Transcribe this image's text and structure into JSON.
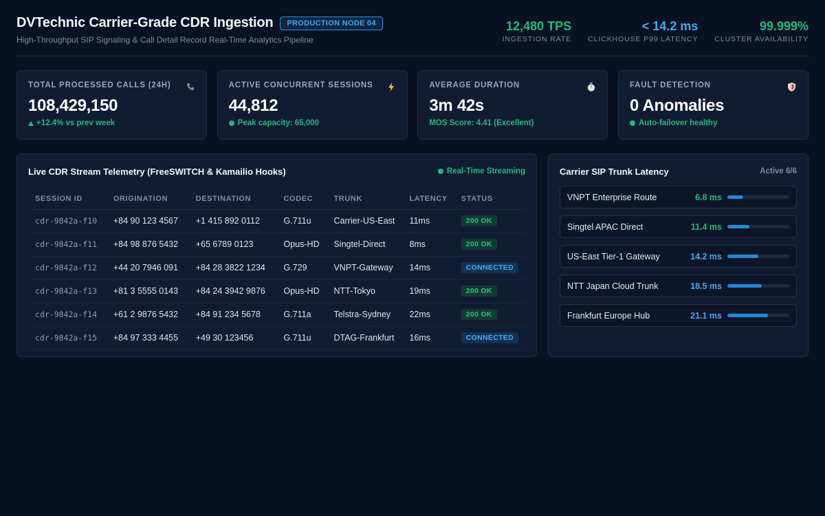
{
  "header": {
    "title": "DVTechnic Carrier-Grade CDR Ingestion",
    "badge": "PRODUCTION NODE 04",
    "subtitle": "High-Throughput SIP Signaling & Call Detail Record Real-Time Analytics Pipeline",
    "metrics": [
      {
        "value": "12,480 TPS",
        "label": "INGESTION RATE",
        "color": "#22b97a"
      },
      {
        "value": "< 14.2 ms",
        "label": "CLICKHOUSE P99 LATENCY",
        "color": "#45a6f2"
      },
      {
        "value": "99.999%",
        "label": "CLUSTER AVAILABILITY",
        "color": "#22b97a"
      }
    ]
  },
  "kpis": [
    {
      "label": "TOTAL PROCESSED CALLS (24H)",
      "icon": "phone-icon",
      "value": "108,429,150",
      "sub": "+12.4% vs prev week"
    },
    {
      "label": "ACTIVE CONCURRENT SESSIONS",
      "icon": "lightning-icon",
      "value": "44,812",
      "sub": "Peak capacity: 65,000"
    },
    {
      "label": "AVERAGE DURATION",
      "icon": "stopwatch-icon",
      "value": "3m 42s",
      "sub": "MOS Score: 4.41 (Excellent)"
    },
    {
      "label": "FAULT DETECTION",
      "icon": "shield-icon",
      "value": "0 Anomalies",
      "sub": "Auto-failover healthy"
    }
  ],
  "telemetry": {
    "title": "Live CDR Stream Telemetry (FreeSWITCH & Kamailio Hooks)",
    "status": "Real-Time Streaming",
    "columns": [
      "SESSION ID",
      "ORIGINATION",
      "DESTINATION",
      "CODEC",
      "TRUNK",
      "LATENCY",
      "STATUS"
    ],
    "rows": [
      [
        "cdr-9842a-f10",
        "+84 90 123 4567",
        "+1 415 892 0112",
        "G.711u",
        "Carrier-US-East",
        "11ms",
        "200 OK"
      ],
      [
        "cdr-9842a-f11",
        "+84 98 876 5432",
        "+65 6789 0123",
        "Opus-HD",
        "Singtel-Direct",
        "8ms",
        "200 OK"
      ],
      [
        "cdr-9842a-f12",
        "+44 20 7946 091",
        "+84 28 3822 1234",
        "G.729",
        "VNPT-Gateway",
        "14ms",
        "CONNECTED"
      ],
      [
        "cdr-9842a-f13",
        "+81 3 5555 0143",
        "+84 24 3942 9876",
        "Opus-HD",
        "NTT-Tokyo",
        "19ms",
        "200 OK"
      ],
      [
        "cdr-9842a-f14",
        "+61 2 9876 5432",
        "+84 91 234 5678",
        "G.711a",
        "Telstra-Sydney",
        "22ms",
        "200 OK"
      ],
      [
        "cdr-9842a-f15",
        "+84 97 333 4455",
        "+49 30 123456",
        "G.711u",
        "DTAG-Frankfurt",
        "16ms",
        "CONNECTED"
      ]
    ]
  },
  "trunks": {
    "title": "Carrier SIP Trunk Latency",
    "active": "Active 6/6",
    "items": [
      {
        "name": "VNPT Enterprise Route",
        "latency": "6.8 ms",
        "level": 0.25,
        "color": "#22b97a"
      },
      {
        "name": "Singtel APAC Direct",
        "latency": "11.4 ms",
        "level": 0.35,
        "color": "#22b97a"
      },
      {
        "name": "US-East Tier-1 Gateway",
        "latency": "14.2 ms",
        "level": 0.5,
        "color": "#45a6f2"
      },
      {
        "name": "NTT Japan Cloud Trunk",
        "latency": "18.5 ms",
        "level": 0.55,
        "color": "#45a6f2"
      },
      {
        "name": "Frankfurt Europe Hub",
        "latency": "21.1 ms",
        "level": 0.65,
        "color": "#45a6f2"
      }
    ]
  }
}
